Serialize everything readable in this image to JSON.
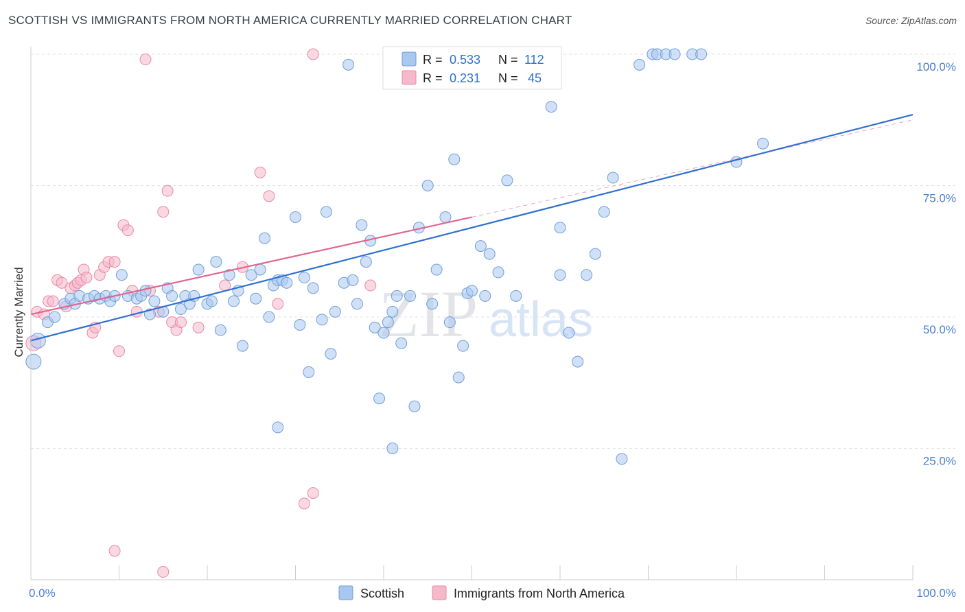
{
  "title": "SCOTTISH VS IMMIGRANTS FROM NORTH AMERICA CURRENTLY MARRIED CORRELATION CHART",
  "source": "Source: ZipAtlas.com",
  "watermark": {
    "part1": "ZIP",
    "part2": "atlas"
  },
  "legend_top": [
    {
      "r_label": "R = ",
      "r_value": "0.533",
      "n_label": "N = ",
      "n_value": "112",
      "color": "#a9c8f0"
    },
    {
      "r_label": "R = ",
      "r_value": "0.231",
      "n_label": "N = ",
      "n_value": " 45",
      "color": "#f6b8cb"
    }
  ],
  "colors": {
    "scottish_fill": "#a9c8f0",
    "scottish_stroke": "#6f9ed8",
    "scottish_line": "#2f6fd0",
    "immig_fill": "#f6b8cb",
    "immig_stroke": "#e889a7",
    "immig_line": "#e06590"
  },
  "chart_data": {
    "type": "scatter",
    "title": "SCOTTISH VS IMMIGRANTS FROM NORTH AMERICA CURRENTLY MARRIED CORRELATION CHART",
    "xlabel": "",
    "ylabel": "Currently Married",
    "xlim": [
      0,
      100
    ],
    "ylim": [
      0,
      100
    ],
    "x_tick_labels": [
      "0.0%",
      "100.0%"
    ],
    "y_tick_labels": [
      "100.0%",
      "75.0%",
      "50.0%",
      "25.0%"
    ],
    "y_ticks": [
      100,
      75,
      50,
      25
    ],
    "grid": true,
    "legend_position": "bottom-center",
    "series": [
      {
        "name": "Scottish",
        "trend": {
          "x0": 0,
          "y0": 45.5,
          "x1": 100,
          "y1": 88.5
        },
        "points": [
          [
            0.3,
            41.5
          ],
          [
            0.8,
            45.5
          ],
          [
            1.9,
            49
          ],
          [
            2.7,
            50
          ],
          [
            3.8,
            52.5
          ],
          [
            4.5,
            53.5
          ],
          [
            5,
            52.5
          ],
          [
            5.5,
            54
          ],
          [
            6.5,
            53.5
          ],
          [
            7.2,
            54
          ],
          [
            7.8,
            53.5
          ],
          [
            8.5,
            54
          ],
          [
            9,
            53
          ],
          [
            9.5,
            54
          ],
          [
            10.3,
            58
          ],
          [
            11,
            54
          ],
          [
            12,
            53.5
          ],
          [
            12.5,
            54
          ],
          [
            13,
            55
          ],
          [
            13.5,
            50.5
          ],
          [
            14,
            53
          ],
          [
            15,
            51
          ],
          [
            15.5,
            55.5
          ],
          [
            16,
            54
          ],
          [
            17,
            51.5
          ],
          [
            17.5,
            54
          ],
          [
            18,
            52.5
          ],
          [
            18.5,
            54
          ],
          [
            19,
            59
          ],
          [
            20,
            52.5
          ],
          [
            20.5,
            53
          ],
          [
            21,
            60.5
          ],
          [
            21.5,
            47.5
          ],
          [
            22.5,
            58
          ],
          [
            23,
            53
          ],
          [
            23.5,
            55
          ],
          [
            24,
            44.5
          ],
          [
            25,
            58
          ],
          [
            25.5,
            53.5
          ],
          [
            26,
            59
          ],
          [
            26.5,
            65
          ],
          [
            27,
            50
          ],
          [
            27.5,
            56
          ],
          [
            28,
            57
          ],
          [
            28.5,
            57
          ],
          [
            29,
            56.5
          ],
          [
            30,
            69
          ],
          [
            30.5,
            48.5
          ],
          [
            31,
            57.5
          ],
          [
            31.5,
            39.5
          ],
          [
            32,
            55.5
          ],
          [
            33,
            49.5
          ],
          [
            33.5,
            70
          ],
          [
            34,
            43
          ],
          [
            34.5,
            51
          ],
          [
            35.5,
            56.5
          ],
          [
            36.5,
            57
          ],
          [
            37,
            52.5
          ],
          [
            37.5,
            67.5
          ],
          [
            38,
            60.5
          ],
          [
            38.5,
            64.5
          ],
          [
            39,
            48
          ],
          [
            39.5,
            34.5
          ],
          [
            40,
            47
          ],
          [
            40.5,
            49
          ],
          [
            41,
            51
          ],
          [
            41.5,
            54
          ],
          [
            42,
            45
          ],
          [
            43,
            54
          ],
          [
            44,
            67
          ],
          [
            45,
            75
          ],
          [
            45.5,
            52.5
          ],
          [
            46,
            59
          ],
          [
            47,
            69
          ],
          [
            47.5,
            49
          ],
          [
            48,
            80
          ],
          [
            48.5,
            38.5
          ],
          [
            49,
            44.5
          ],
          [
            49.5,
            54.5
          ],
          [
            50,
            55
          ],
          [
            51,
            63.5
          ],
          [
            51.5,
            54
          ],
          [
            52,
            62
          ],
          [
            53,
            58.5
          ],
          [
            54,
            76
          ],
          [
            58,
            98
          ],
          [
            59,
            90
          ],
          [
            60,
            67
          ],
          [
            61,
            47
          ],
          [
            62,
            41.5
          ],
          [
            63,
            58
          ],
          [
            64,
            62
          ],
          [
            65,
            70
          ],
          [
            66,
            76.5
          ],
          [
            67,
            23
          ],
          [
            69,
            98
          ],
          [
            70.5,
            100
          ],
          [
            71,
            100
          ],
          [
            72,
            100
          ],
          [
            73,
            100
          ],
          [
            75,
            100
          ],
          [
            76,
            100
          ],
          [
            80,
            79.5
          ],
          [
            83,
            83
          ],
          [
            28,
            29
          ],
          [
            36,
            98
          ],
          [
            41,
            25
          ],
          [
            43.5,
            33
          ],
          [
            55,
            54
          ],
          [
            60,
            58
          ]
        ]
      },
      {
        "name": "Immigrants from North America",
        "trend": {
          "x0": 0,
          "y0": 50.5,
          "x1": 50,
          "y1": 69
        },
        "points": [
          [
            0.3,
            45
          ],
          [
            0.7,
            51
          ],
          [
            1.5,
            50.5
          ],
          [
            2,
            53
          ],
          [
            2.5,
            53
          ],
          [
            3,
            57
          ],
          [
            3.5,
            56.5
          ],
          [
            4,
            52
          ],
          [
            4.5,
            55.5
          ],
          [
            5,
            56
          ],
          [
            5.3,
            56.5
          ],
          [
            5.7,
            57
          ],
          [
            6,
            59
          ],
          [
            6.3,
            57.5
          ],
          [
            7,
            47
          ],
          [
            7.3,
            48
          ],
          [
            7.8,
            58
          ],
          [
            8.3,
            59.5
          ],
          [
            8.8,
            60.5
          ],
          [
            9.5,
            60.5
          ],
          [
            10,
            43.5
          ],
          [
            10.5,
            67.5
          ],
          [
            11,
            66.5
          ],
          [
            11.5,
            55
          ],
          [
            12,
            51
          ],
          [
            13,
            99
          ],
          [
            13.5,
            55
          ],
          [
            14.5,
            51
          ],
          [
            15,
            70
          ],
          [
            15.5,
            74
          ],
          [
            16,
            49
          ],
          [
            16.5,
            47.5
          ],
          [
            17,
            49
          ],
          [
            19,
            48
          ],
          [
            24,
            59.5
          ],
          [
            26,
            77.5
          ],
          [
            27,
            73
          ],
          [
            28,
            52.5
          ],
          [
            31,
            14.5
          ],
          [
            32,
            16.5
          ],
          [
            9.5,
            5.5
          ],
          [
            15,
            1.5
          ],
          [
            32,
            100
          ],
          [
            22,
            56
          ],
          [
            38.5,
            56
          ]
        ]
      }
    ]
  },
  "legend_bottom": [
    {
      "label": "Scottish"
    },
    {
      "label": "Immigrants from North America"
    }
  ]
}
